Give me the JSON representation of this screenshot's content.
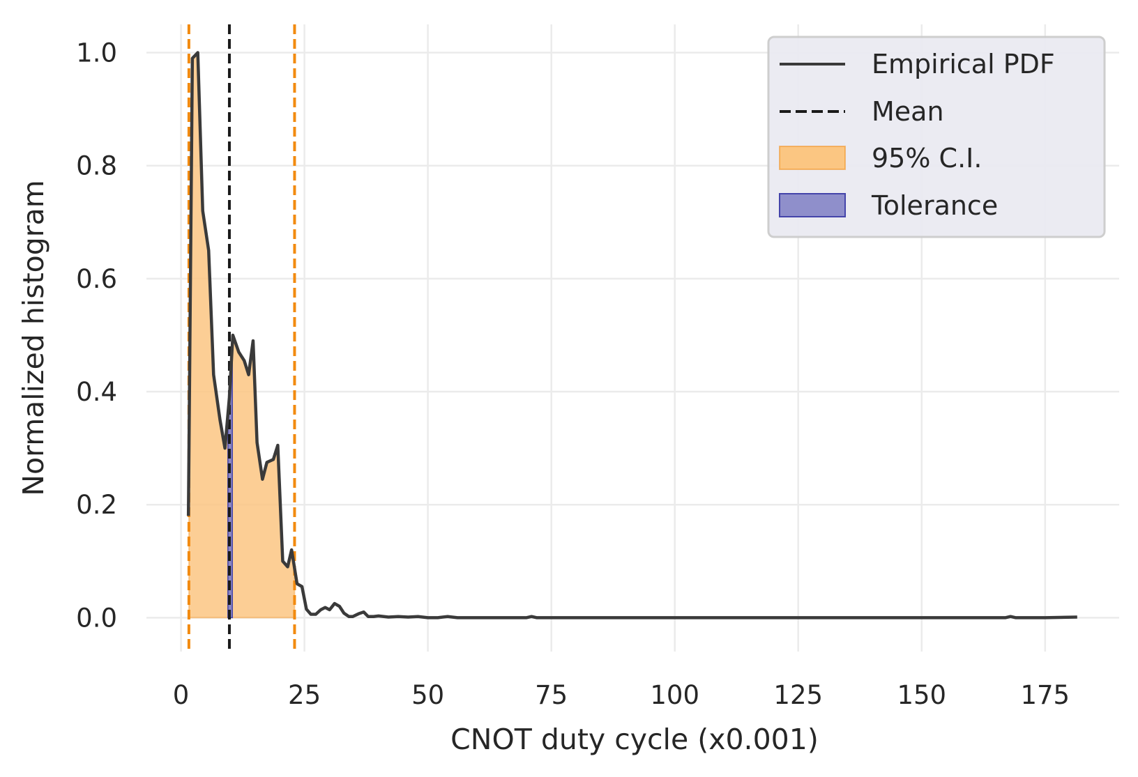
{
  "chart_data": {
    "type": "line",
    "xlabel": "CNOT duty cycle (x0.001)",
    "ylabel": "Normalized histogram",
    "xlim": [
      -7,
      190
    ],
    "ylim": [
      -0.06,
      1.05
    ],
    "xticks": [
      0,
      25,
      50,
      75,
      100,
      125,
      150,
      175
    ],
    "yticks": [
      0.0,
      0.2,
      0.4,
      0.6,
      0.8,
      1.0
    ],
    "xtick_labels": [
      "0",
      "25",
      "50",
      "75",
      "100",
      "125",
      "150",
      "175"
    ],
    "ytick_labels": [
      "0.0",
      "0.2",
      "0.4",
      "0.6",
      "0.8",
      "1.0"
    ],
    "grid": true,
    "legend_position": "top-right",
    "colors": {
      "pdf": "#3a3a3a",
      "mean": "#1a1a1a",
      "ci_fill": "#fbc682",
      "ci_line": "#f28a0f",
      "tolerance_fill": "#7f7fc4",
      "tolerance_edge": "#4444aa",
      "grid": "#ebebeb",
      "legend_bg": "#eaeaf2"
    },
    "mean": 9.8,
    "ci": [
      1.6,
      23.0
    ],
    "tolerance": [
      9.5,
      10.4
    ],
    "series": [
      {
        "name": "Empirical PDF",
        "x": [
          1.5,
          2.3,
          3.4,
          4.4,
          5.6,
          6.6,
          7.9,
          8.9,
          9.8,
          10.5,
          11.7,
          12.8,
          13.7,
          14.6,
          15.4,
          16.5,
          17.4,
          18.7,
          19.6,
          20.6,
          21.6,
          22.4,
          23.5,
          24.5,
          25.4,
          26.3,
          27.3,
          28.3,
          29.2,
          30.1,
          31.1,
          32.1,
          33.0,
          34.0,
          34.8,
          36.0,
          37.0,
          37.9,
          39.0,
          40.0,
          42.0,
          44.0,
          46.0,
          48.0,
          50.0,
          52.0,
          54.0,
          56.0,
          58.0,
          60.0,
          65.0,
          70.0,
          71.0,
          72.0,
          80.0,
          100.0,
          120.0,
          140.0,
          160.0,
          167.0,
          168.0,
          169.0,
          175.0,
          181.5
        ],
        "y": [
          0.18,
          0.99,
          1.0,
          0.72,
          0.65,
          0.43,
          0.35,
          0.3,
          0.39,
          0.5,
          0.47,
          0.455,
          0.43,
          0.49,
          0.31,
          0.245,
          0.275,
          0.28,
          0.305,
          0.1,
          0.09,
          0.12,
          0.06,
          0.055,
          0.015,
          0.006,
          0.006,
          0.014,
          0.018,
          0.014,
          0.025,
          0.02,
          0.008,
          0.002,
          0.002,
          0.007,
          0.01,
          0.002,
          0.002,
          0.003,
          0.001,
          0.002,
          0.001,
          0.002,
          0.0,
          0.0,
          0.002,
          0.0,
          0.0,
          0.0,
          0.0,
          0.0,
          0.002,
          0.0,
          0.0,
          0.0,
          0.0,
          0.0,
          0.0,
          0.0,
          0.002,
          0.0,
          0.0,
          0.001
        ]
      }
    ],
    "legend": [
      "Empirical PDF",
      "Mean",
      "95% C.I.",
      "Tolerance"
    ]
  }
}
